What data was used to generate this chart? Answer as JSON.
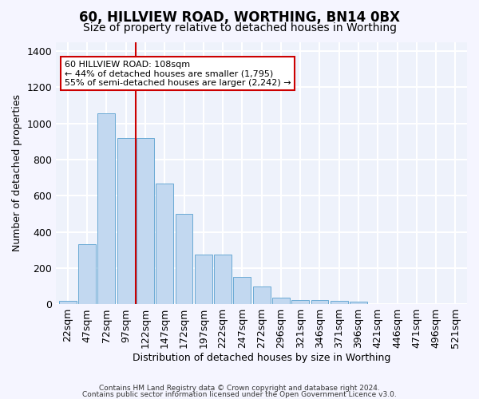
{
  "title1": "60, HILLVIEW ROAD, WORTHING, BN14 0BX",
  "title2": "Size of property relative to detached houses in Worthing",
  "xlabel": "Distribution of detached houses by size in Worthing",
  "ylabel": "Number of detached properties",
  "categories": [
    "22sqm",
    "47sqm",
    "72sqm",
    "97sqm",
    "122sqm",
    "147sqm",
    "172sqm",
    "197sqm",
    "222sqm",
    "247sqm",
    "272sqm",
    "296sqm",
    "321sqm",
    "346sqm",
    "371sqm",
    "396sqm",
    "421sqm",
    "446sqm",
    "471sqm",
    "496sqm",
    "521sqm"
  ],
  "values": [
    20,
    330,
    1055,
    920,
    920,
    665,
    500,
    275,
    275,
    150,
    100,
    35,
    22,
    22,
    18,
    12,
    0,
    0,
    0,
    0,
    0
  ],
  "bar_color": "#c2d8f0",
  "bar_edge_color": "#6aaad4",
  "vline_color": "#cc0000",
  "vline_position": 3.5,
  "annotation_label": "60 HILLVIEW ROAD: 108sqm",
  "annotation_line1": "← 44% of detached houses are smaller (1,795)",
  "annotation_line2": "55% of semi-detached houses are larger (2,242) →",
  "ylim": [
    0,
    1450
  ],
  "bg_color": "#eef2fb",
  "grid_color": "#ffffff",
  "footer_line1": "Contains HM Land Registry data © Crown copyright and database right 2024.",
  "footer_line2": "Contains public sector information licensed under the Open Government Licence v3.0."
}
